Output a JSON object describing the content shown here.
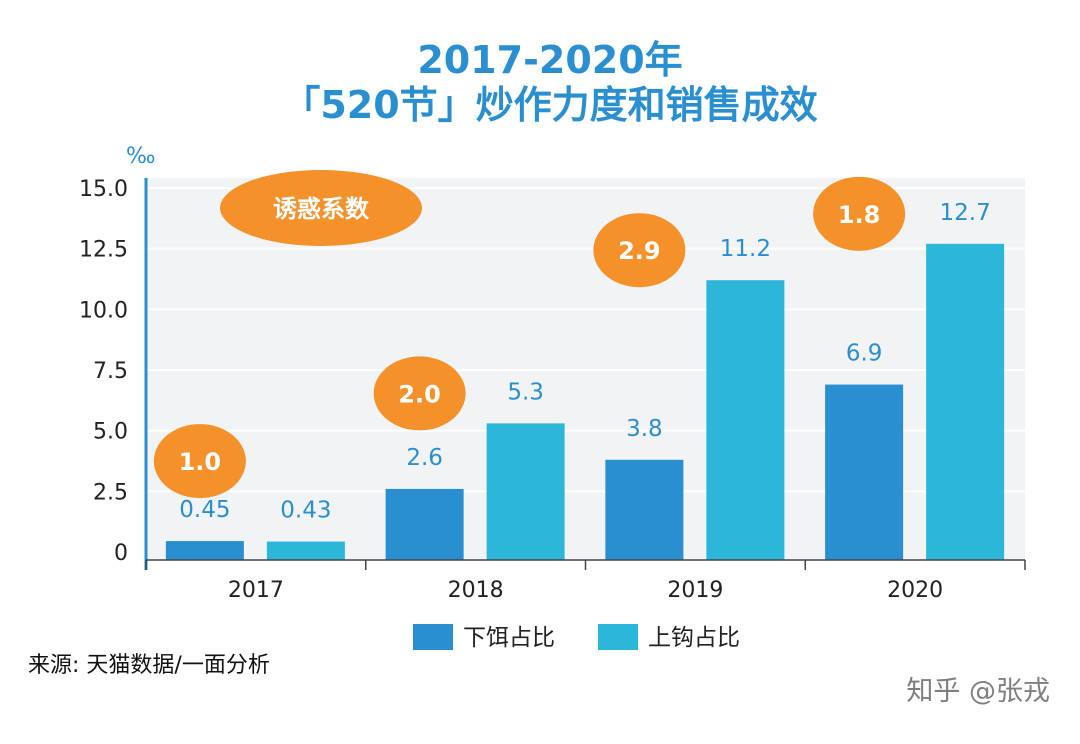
{
  "chart_data": {
    "type": "bar",
    "title_line1": "2017-2020年",
    "title_line2": "「520节」炒作力度和销售成效",
    "ylabel": "‰",
    "ylim": [
      0,
      15
    ],
    "yticks": [
      "0",
      "2.5",
      "5.0",
      "7.5",
      "10.0",
      "12.5",
      "15.0"
    ],
    "ytick_values": [
      0,
      2.5,
      5.0,
      7.5,
      10.0,
      12.5,
      15.0
    ],
    "categories": [
      "2017",
      "2018",
      "2019",
      "2020"
    ],
    "series": [
      {
        "name": "下饵占比",
        "color": "#2a8fd1",
        "values": [
          0.45,
          2.6,
          3.8,
          6.9
        ],
        "labels": [
          "0.45",
          "2.6",
          "3.8",
          "6.9"
        ]
      },
      {
        "name": "上钩占比",
        "color": "#2cb6d9",
        "values": [
          0.43,
          5.3,
          11.2,
          12.7
        ],
        "labels": [
          "0.43",
          "5.3",
          "11.2",
          "12.7"
        ]
      }
    ],
    "annotation_legend": "诱惑系数",
    "temptation_coefficients": [
      "1.0",
      "2.0",
      "2.9",
      "1.8"
    ],
    "badge_color": "#f4912a",
    "title_color": "#2a8fd1",
    "label_color": "#2a8fd1",
    "grid": true,
    "legend_placement": "bottom"
  },
  "source_text": "来源: 天猫数据/一面分析",
  "watermark": "知乎 @张戎"
}
